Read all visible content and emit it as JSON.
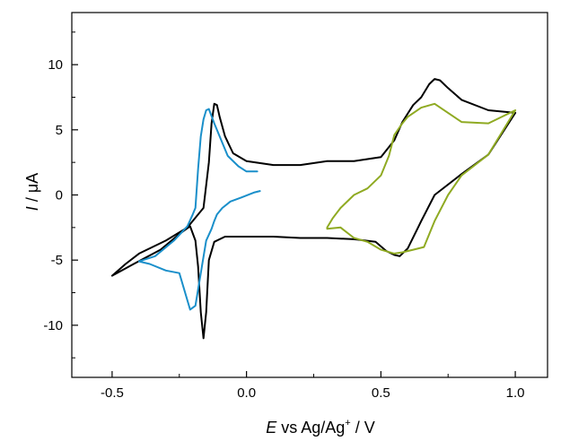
{
  "chart_data": {
    "type": "line",
    "title": "",
    "xlabel": {
      "italic": "E",
      "middle": " vs Ag/Ag",
      "superscript": "+",
      "tail": " / V"
    },
    "ylabel": {
      "italic": "I",
      "tail": " / μA"
    },
    "xlim": [
      -0.65,
      1.12
    ],
    "ylim": [
      -14,
      14
    ],
    "x_ticks": [
      -0.5,
      0.0,
      0.5,
      1.0
    ],
    "x_tick_labels": [
      "-0.5",
      "0.0",
      "0.5",
      "1.0"
    ],
    "y_ticks": [
      -10,
      -5,
      0,
      5,
      10
    ],
    "y_tick_labels": [
      "-10",
      "-5",
      "0",
      "5",
      "10"
    ],
    "grid": false,
    "legend": "none",
    "series": [
      {
        "color": "#000000",
        "x": [
          1.0,
          0.9,
          0.8,
          0.75,
          0.72,
          0.7,
          0.68,
          0.65,
          0.62,
          0.58,
          0.55,
          0.5,
          0.4,
          0.3,
          0.2,
          0.1,
          0.0,
          -0.05,
          -0.08,
          -0.1,
          -0.11,
          -0.12,
          -0.13,
          -0.14,
          -0.16,
          -0.18,
          -0.22,
          -0.3,
          -0.4,
          -0.45,
          -0.5,
          -0.42,
          -0.32,
          -0.25,
          -0.21,
          -0.19,
          -0.18,
          -0.17,
          -0.16,
          -0.15,
          -0.14,
          -0.12,
          -0.08,
          0.0,
          0.1,
          0.2,
          0.3,
          0.4,
          0.48,
          0.52,
          0.55,
          0.57,
          0.6,
          0.65,
          0.7,
          0.8,
          0.9,
          1.0
        ],
        "y": [
          6.3,
          6.5,
          7.3,
          8.2,
          8.8,
          8.9,
          8.5,
          7.5,
          6.9,
          5.6,
          4.2,
          2.9,
          2.6,
          2.6,
          2.3,
          2.3,
          2.6,
          3.2,
          4.5,
          6.0,
          6.9,
          7.0,
          5.5,
          2.5,
          -1.0,
          -1.5,
          -2.5,
          -3.5,
          -4.5,
          -5.3,
          -6.2,
          -5.3,
          -4.2,
          -3.0,
          -2.4,
          -3.5,
          -5.5,
          -9.0,
          -11.0,
          -9.0,
          -5.0,
          -3.6,
          -3.2,
          -3.2,
          -3.2,
          -3.3,
          -3.3,
          -3.4,
          -3.6,
          -4.3,
          -4.6,
          -4.7,
          -4.1,
          -2.0,
          0.0,
          1.6,
          3.1,
          6.3
        ]
      },
      {
        "color": "#1a8fca",
        "x": [
          0.05,
          0.03,
          -0.02,
          -0.06,
          -0.09,
          -0.11,
          -0.12,
          -0.13,
          -0.15,
          -0.17,
          -0.19,
          -0.21,
          -0.25,
          -0.3,
          -0.36,
          -0.4,
          -0.34,
          -0.27,
          -0.22,
          -0.2,
          -0.19,
          -0.18,
          -0.17,
          -0.16,
          -0.15,
          -0.14,
          -0.12,
          -0.1,
          -0.07,
          -0.03,
          0.0,
          0.04
        ],
        "y": [
          0.3,
          0.2,
          -0.2,
          -0.5,
          -1.0,
          -1.5,
          -2.0,
          -2.6,
          -3.5,
          -6.0,
          -8.5,
          -8.8,
          -6.0,
          -5.8,
          -5.3,
          -5.1,
          -4.7,
          -3.5,
          -2.4,
          -1.5,
          -1.0,
          2.0,
          4.5,
          5.8,
          6.5,
          6.6,
          5.5,
          4.5,
          3.0,
          2.2,
          1.8,
          1.8
        ]
      },
      {
        "color": "#8faa22",
        "x": [
          0.35,
          0.3,
          0.3,
          0.32,
          0.35,
          0.4,
          0.45,
          0.5,
          0.53,
          0.55,
          0.58,
          0.6,
          0.65,
          0.7,
          0.8,
          0.9,
          1.0,
          0.9,
          0.8,
          0.75,
          0.7,
          0.66,
          0.62,
          0.58,
          0.55,
          0.5,
          0.45,
          0.4,
          0.35
        ],
        "y": [
          -2.5,
          -2.6,
          -2.5,
          -1.8,
          -1.0,
          0.0,
          0.5,
          1.5,
          3.0,
          4.6,
          5.5,
          6.0,
          6.7,
          7.0,
          5.6,
          5.5,
          6.5,
          3.1,
          1.5,
          0.0,
          -2.0,
          -4.0,
          -4.2,
          -4.4,
          -4.5,
          -4.2,
          -3.6,
          -3.3,
          -2.5
        ]
      }
    ]
  }
}
